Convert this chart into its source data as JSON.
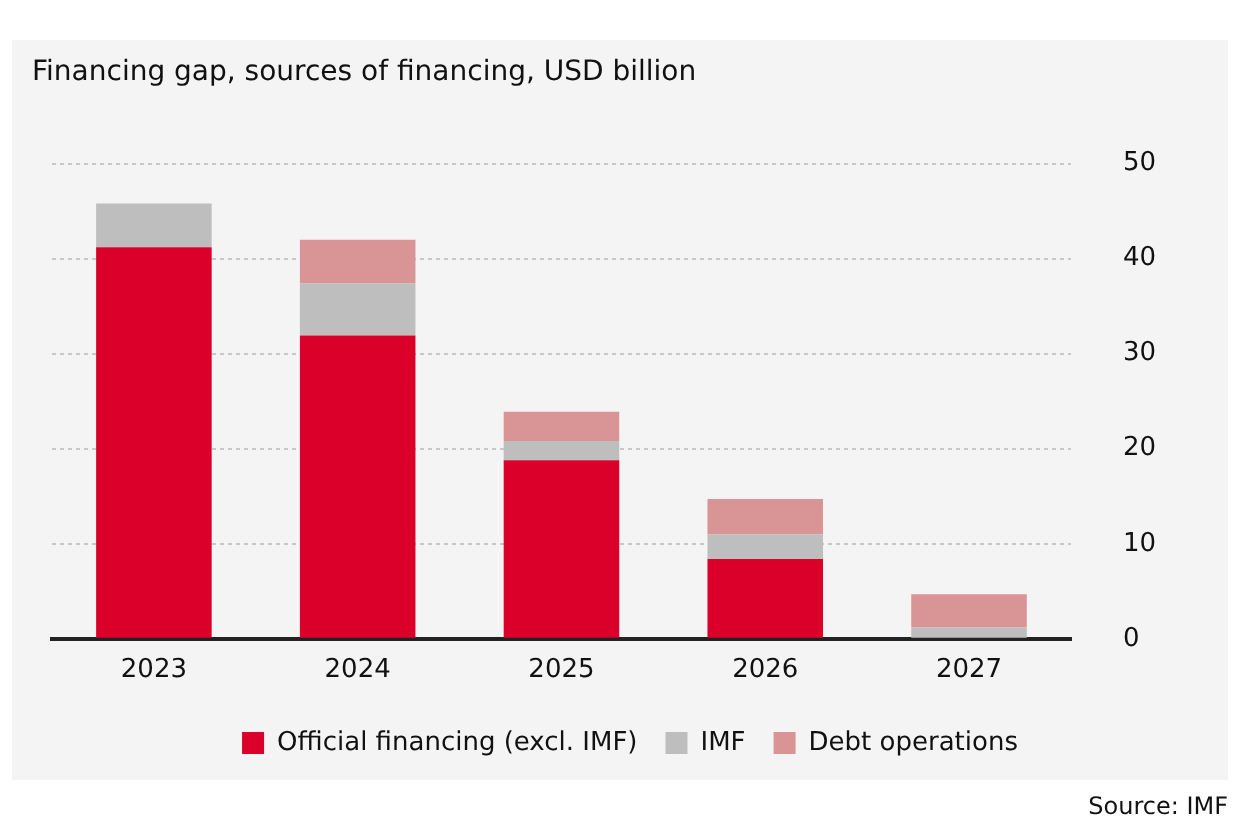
{
  "chart_data": {
    "type": "bar",
    "title": "Financing gap, sources of financing, USD billion",
    "categories": [
      "2023",
      "2024",
      "2025",
      "2026",
      "2027"
    ],
    "series": [
      {
        "name": "Official financing (excl. IMF)",
        "color": "#da0029",
        "values": [
          41.2,
          31.9,
          18.8,
          8.4,
          0
        ]
      },
      {
        "name": "IMF",
        "color": "#bebebe",
        "values": [
          4.6,
          5.5,
          2.0,
          2.6,
          1.2
        ]
      },
      {
        "name": "Debt operations",
        "color": "#d99595",
        "values": [
          0,
          4.6,
          3.1,
          3.7,
          3.5
        ]
      }
    ],
    "stacked": true,
    "ylim": [
      0,
      50
    ],
    "yticks": [
      0,
      10,
      20,
      30,
      40,
      50
    ],
    "grid": "y",
    "legend": "bottom",
    "annotations": [
      "Source: IMF"
    ]
  }
}
